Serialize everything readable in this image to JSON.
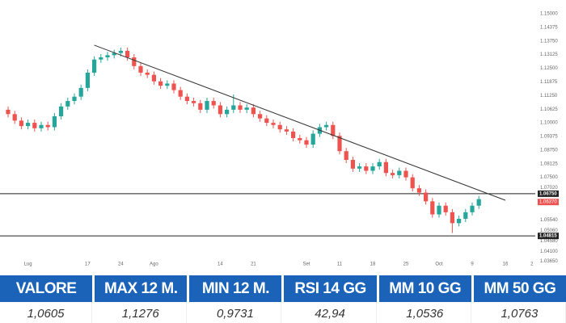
{
  "chart_data": {
    "type": "candlestick",
    "ylim": [
      1.0334,
      1.1563
    ],
    "yticks": [
      {
        "value": 1.15,
        "label": "1.15000"
      },
      {
        "value": 1.14375,
        "label": "1.14375"
      },
      {
        "value": 1.1375,
        "label": "1.13750"
      },
      {
        "value": 1.13125,
        "label": "1.13125"
      },
      {
        "value": 1.125,
        "label": "1.12500"
      },
      {
        "value": 1.11875,
        "label": "1.11875"
      },
      {
        "value": 1.1125,
        "label": "1.11250"
      },
      {
        "value": 1.10625,
        "label": "1.10625"
      },
      {
        "value": 1.1,
        "label": "1.10000"
      },
      {
        "value": 1.09375,
        "label": "1.09375"
      },
      {
        "value": 1.0875,
        "label": "1.08750"
      },
      {
        "value": 1.08125,
        "label": "1.08125"
      },
      {
        "value": 1.075,
        "label": "1.07500"
      },
      {
        "value": 1.0702,
        "label": "1.07020"
      },
      {
        "value": 1.0554,
        "label": "1.05540"
      },
      {
        "value": 1.0506,
        "label": "1.05060"
      },
      {
        "value": 1.0458,
        "label": "1.04580"
      },
      {
        "value": 1.041,
        "label": "1.04100"
      },
      {
        "value": 1.0365,
        "label": "1.03650"
      }
    ],
    "categories": [
      null,
      null,
      null,
      "Lug",
      null,
      null,
      null,
      null,
      null,
      null,
      null,
      null,
      "17",
      null,
      null,
      null,
      null,
      "24",
      null,
      null,
      null,
      null,
      "Ago",
      null,
      null,
      null,
      null,
      null,
      null,
      null,
      null,
      null,
      "14",
      null,
      null,
      null,
      null,
      "21",
      null,
      null,
      null,
      null,
      null,
      null,
      null,
      "Set",
      null,
      null,
      null,
      null,
      "11",
      null,
      null,
      null,
      null,
      "18",
      null,
      null,
      null,
      null,
      "25",
      null,
      null,
      null,
      null,
      "Oct",
      null,
      null,
      null,
      null,
      "9",
      null,
      null,
      null,
      null,
      "16",
      null,
      null,
      null,
      "2",
      null
    ],
    "up_color": "#26a69a",
    "down_color": "#ef5350",
    "open": [
      1.106,
      1.104,
      1.101,
      1.0985,
      1.1,
      1.0975,
      1.099,
      1.098,
      1.103,
      1.1075,
      1.11,
      1.112,
      1.116,
      1.123,
      1.129,
      1.13,
      1.131,
      1.132,
      1.133,
      1.13,
      1.126,
      1.123,
      1.122,
      1.119,
      1.117,
      1.118,
      1.115,
      1.112,
      1.11,
      1.109,
      1.106,
      1.11,
      1.108,
      1.104,
      1.106,
      1.108,
      1.106,
      1.107,
      1.104,
      1.102,
      1.1,
      1.099,
      1.097,
      1.096,
      1.093,
      1.092,
      1.09,
      1.095,
      1.098,
      1.099,
      1.094,
      1.087,
      1.083,
      1.079,
      1.08,
      1.078,
      1.08,
      1.082,
      1.077,
      1.076,
      1.078,
      1.075,
      1.07,
      1.068,
      1.064,
      1.058,
      1.062,
      1.059,
      1.054,
      1.056,
      1.059,
      1.062,
      null,
      null,
      null,
      null,
      null,
      null,
      null,
      null,
      null
    ],
    "high": [
      1.1075,
      1.1055,
      1.1025,
      1.1015,
      1.1015,
      1.1005,
      1.1005,
      1.1045,
      1.109,
      1.1115,
      1.1135,
      1.1175,
      1.1245,
      1.1305,
      1.1315,
      1.1325,
      1.1335,
      1.1345,
      1.1345,
      1.1315,
      1.1275,
      1.1245,
      1.1235,
      1.1205,
      1.1195,
      1.1195,
      1.1165,
      1.1135,
      1.1115,
      1.1105,
      1.1115,
      1.1115,
      1.1095,
      1.1075,
      1.113,
      1.1095,
      1.1085,
      1.1085,
      1.1055,
      1.1035,
      1.1015,
      1.1005,
      1.0985,
      1.0975,
      1.0945,
      1.0935,
      1.0965,
      1.0995,
      1.1005,
      1.1005,
      1.0955,
      1.0885,
      1.0845,
      1.0815,
      1.0815,
      1.0815,
      1.0835,
      1.0835,
      1.0785,
      1.0795,
      1.0795,
      1.0765,
      1.0715,
      1.0695,
      1.0655,
      1.0635,
      1.0635,
      1.0605,
      1.0575,
      1.0605,
      1.0635,
      1.0665,
      null,
      null,
      null,
      null,
      null,
      null,
      null,
      null,
      null
    ],
    "low": [
      1.1025,
      1.0995,
      1.097,
      1.097,
      1.096,
      1.096,
      1.0965,
      1.0965,
      1.1015,
      1.106,
      1.1085,
      1.1105,
      1.1145,
      1.1215,
      1.1275,
      1.1285,
      1.1295,
      1.1305,
      1.1285,
      1.1245,
      1.1215,
      1.1205,
      1.1175,
      1.1155,
      1.1155,
      1.1135,
      1.1105,
      1.1085,
      1.1075,
      1.1045,
      1.1045,
      1.1065,
      1.1025,
      1.1025,
      1.1045,
      1.1045,
      1.1045,
      1.1025,
      1.1005,
      1.0985,
      1.0975,
      1.0955,
      1.0945,
      1.0915,
      1.0905,
      1.0885,
      1.0885,
      1.0935,
      1.0965,
      1.0925,
      1.0855,
      1.0815,
      1.0775,
      1.0775,
      1.0765,
      1.0765,
      1.0785,
      1.0755,
      1.0745,
      1.0745,
      1.0735,
      1.0685,
      1.0665,
      1.0625,
      1.0565,
      1.0565,
      1.0575,
      1.0495,
      1.0525,
      1.0545,
      1.0575,
      1.0605,
      null,
      null,
      null,
      null,
      null,
      null,
      null,
      null,
      null
    ],
    "close": [
      1.104,
      1.101,
      1.0985,
      1.1,
      1.0975,
      1.099,
      1.098,
      1.103,
      1.1075,
      1.11,
      1.112,
      1.116,
      1.123,
      1.129,
      1.13,
      1.131,
      1.132,
      1.133,
      1.13,
      1.126,
      1.123,
      1.122,
      1.119,
      1.117,
      1.118,
      1.115,
      1.112,
      1.11,
      1.109,
      1.106,
      1.11,
      1.108,
      1.104,
      1.106,
      1.108,
      1.106,
      1.107,
      1.104,
      1.102,
      1.1,
      1.099,
      1.097,
      1.096,
      1.093,
      1.092,
      1.09,
      1.095,
      1.098,
      1.099,
      1.094,
      1.087,
      1.083,
      1.079,
      1.08,
      1.078,
      1.08,
      1.082,
      1.077,
      1.076,
      1.078,
      1.075,
      1.07,
      1.068,
      1.064,
      1.058,
      1.062,
      1.059,
      1.054,
      1.056,
      1.059,
      1.062,
      1.065,
      null,
      null,
      null,
      null,
      null,
      null,
      null,
      null,
      null
    ],
    "trendline": {
      "color": "#333333",
      "x": [
        13,
        75
      ],
      "y": [
        1.1356,
        1.0645
      ]
    },
    "levels": [
      {
        "value": 1.0675,
        "label": "1.06750",
        "color": "#222222"
      },
      {
        "value": 1.04815,
        "label": "1.04815",
        "color": "#222222"
      }
    ],
    "price_tag": {
      "value": 1.0637,
      "label": "1.06370",
      "color": "#ef5350"
    }
  },
  "table": {
    "headers": [
      "VALORE",
      "MAX 12 M.",
      "MIN 12 M.",
      "RSI 14 GG",
      "MM 10 GG",
      "MM 50 GG"
    ],
    "rows": [
      [
        "1,0605",
        "1,1276",
        "0,9731",
        "42,94",
        "1,0536",
        "1,0763"
      ]
    ]
  }
}
